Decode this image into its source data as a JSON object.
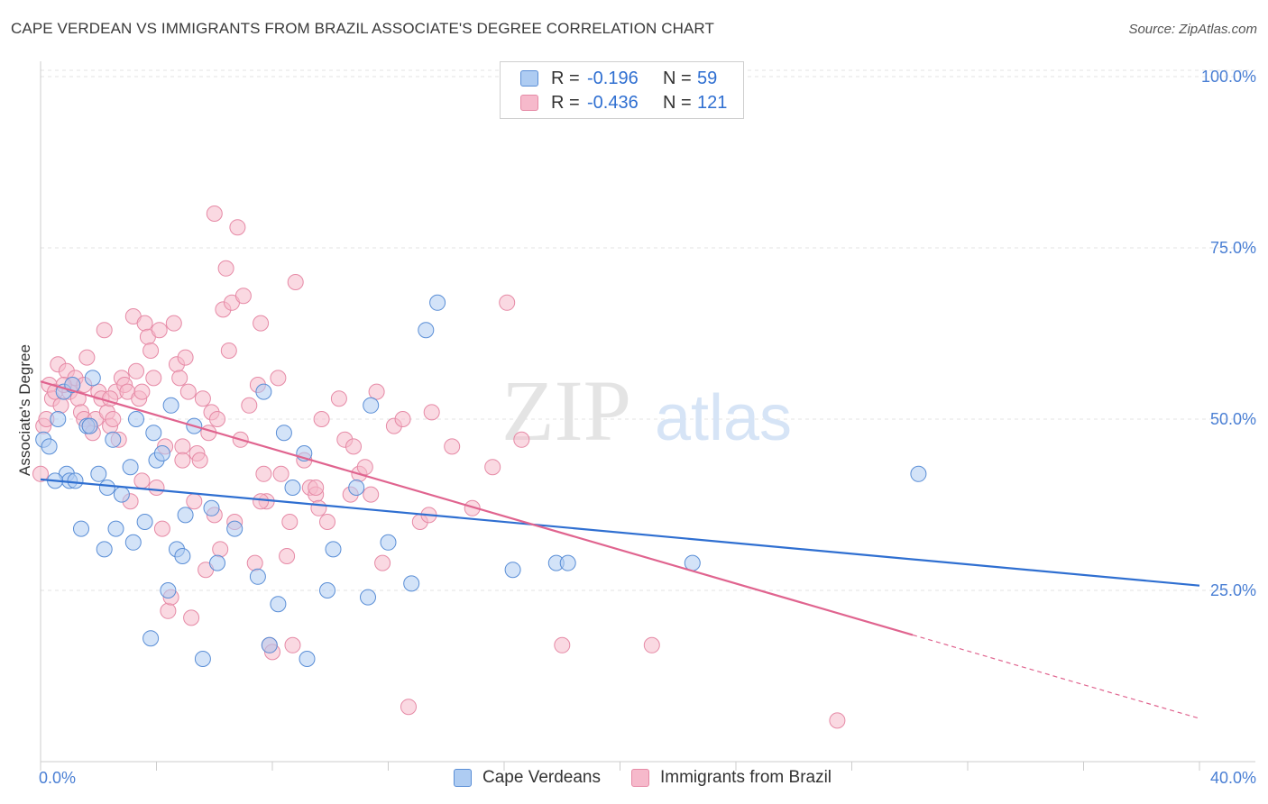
{
  "title": "CAPE VERDEAN VS IMMIGRANTS FROM BRAZIL ASSOCIATE'S DEGREE CORRELATION CHART",
  "source": "Source: ZipAtlas.com",
  "watermark": {
    "part1": "ZIP",
    "part2": "atlas"
  },
  "legend": {
    "series1": {
      "r_label": "R =",
      "r_value": "-0.196",
      "n_label": "N =",
      "n_value": "59"
    },
    "series2": {
      "r_label": "R =",
      "r_value": "-0.436",
      "n_label": "N =",
      "n_value": "121"
    }
  },
  "chart_data": {
    "type": "scatter",
    "title": "CAPE VERDEAN VS IMMIGRANTS FROM BRAZIL ASSOCIATE'S DEGREE CORRELATION CHART",
    "xlabel": "",
    "ylabel": "Associate's Degree",
    "xlim": [
      0,
      40
    ],
    "ylim": [
      0,
      105
    ],
    "x_tick_labels": {
      "min": "0.0%",
      "max": "40.0%"
    },
    "y_ticks": [
      {
        "value": 100,
        "label": "100.0%"
      },
      {
        "value": 75,
        "label": "75.0%"
      },
      {
        "value": 50,
        "label": "50.0%"
      },
      {
        "value": 25,
        "label": "25.0%"
      }
    ],
    "colors": {
      "blue_fill": "#aeccf2",
      "blue_stroke": "#5a8ed6",
      "blue_line": "#2f6fd1",
      "pink_fill": "#f6b9cb",
      "pink_stroke": "#e68aa6",
      "pink_line": "#e0648f",
      "tick_label": "#4a7fd4",
      "grid": "#e3e3e3"
    },
    "series": [
      {
        "name": "Cape Verdeans",
        "trend": {
          "x0": 0,
          "y0": 41.2,
          "x1": 40,
          "y1": 25.7
        },
        "points": [
          [
            0.1,
            47
          ],
          [
            0.3,
            46
          ],
          [
            0.6,
            50
          ],
          [
            0.8,
            54
          ],
          [
            0.9,
            42
          ],
          [
            1.0,
            41
          ],
          [
            1.2,
            41
          ],
          [
            1.4,
            34
          ],
          [
            1.6,
            49
          ],
          [
            1.8,
            56
          ],
          [
            2.0,
            42
          ],
          [
            2.2,
            31
          ],
          [
            2.3,
            40
          ],
          [
            2.5,
            47
          ],
          [
            2.6,
            34
          ],
          [
            2.8,
            39
          ],
          [
            3.1,
            43
          ],
          [
            3.2,
            32
          ],
          [
            3.3,
            50
          ],
          [
            3.6,
            35
          ],
          [
            3.8,
            18
          ],
          [
            4.0,
            44
          ],
          [
            4.2,
            45
          ],
          [
            4.4,
            25
          ],
          [
            4.5,
            52
          ],
          [
            4.7,
            31
          ],
          [
            4.9,
            30
          ],
          [
            5.0,
            36
          ],
          [
            5.3,
            49
          ],
          [
            5.6,
            15
          ],
          [
            5.9,
            37
          ],
          [
            6.1,
            29
          ],
          [
            6.7,
            34
          ],
          [
            7.5,
            27
          ],
          [
            7.7,
            54
          ],
          [
            7.9,
            17
          ],
          [
            8.2,
            23
          ],
          [
            8.4,
            48
          ],
          [
            8.7,
            40
          ],
          [
            9.1,
            45
          ],
          [
            9.2,
            15
          ],
          [
            9.9,
            25
          ],
          [
            10.1,
            31
          ],
          [
            10.9,
            40
          ],
          [
            11.3,
            24
          ],
          [
            11.4,
            52
          ],
          [
            12.0,
            32
          ],
          [
            12.8,
            26
          ],
          [
            13.3,
            63
          ],
          [
            13.7,
            67
          ],
          [
            16.3,
            28
          ],
          [
            17.8,
            29
          ],
          [
            18.2,
            29
          ],
          [
            22.5,
            29
          ],
          [
            30.3,
            42
          ],
          [
            0.5,
            41
          ],
          [
            1.1,
            55
          ],
          [
            1.7,
            49
          ],
          [
            3.9,
            48
          ]
        ]
      },
      {
        "name": "Immigrants from Brazil",
        "trend": {
          "x0": 0,
          "y0": 55.5,
          "x1": 30.1,
          "y1": 18.5
        },
        "trend_dashed": {
          "x0": 30.1,
          "y0": 18.5,
          "x1": 40,
          "y1": 6.3
        },
        "points": [
          [
            0.0,
            42
          ],
          [
            0.1,
            49
          ],
          [
            0.2,
            50
          ],
          [
            0.3,
            55
          ],
          [
            0.4,
            53
          ],
          [
            0.5,
            54
          ],
          [
            0.6,
            58
          ],
          [
            0.7,
            52
          ],
          [
            0.9,
            57
          ],
          [
            1.0,
            54
          ],
          [
            1.1,
            55
          ],
          [
            1.2,
            56
          ],
          [
            1.3,
            53
          ],
          [
            1.4,
            51
          ],
          [
            1.5,
            50
          ],
          [
            1.6,
            59
          ],
          [
            1.7,
            49
          ],
          [
            1.8,
            48
          ],
          [
            1.9,
            50
          ],
          [
            2.0,
            54
          ],
          [
            2.1,
            53
          ],
          [
            2.2,
            63
          ],
          [
            2.3,
            51
          ],
          [
            2.4,
            49
          ],
          [
            2.5,
            50
          ],
          [
            2.6,
            54
          ],
          [
            2.7,
            47
          ],
          [
            2.8,
            56
          ],
          [
            2.9,
            55
          ],
          [
            3.0,
            54
          ],
          [
            3.1,
            38
          ],
          [
            3.2,
            65
          ],
          [
            3.3,
            57
          ],
          [
            3.4,
            53
          ],
          [
            3.5,
            41
          ],
          [
            3.6,
            64
          ],
          [
            3.7,
            62
          ],
          [
            3.8,
            60
          ],
          [
            3.9,
            56
          ],
          [
            4.0,
            40
          ],
          [
            4.1,
            63
          ],
          [
            4.2,
            34
          ],
          [
            4.3,
            46
          ],
          [
            4.4,
            22
          ],
          [
            4.5,
            24
          ],
          [
            4.6,
            64
          ],
          [
            4.7,
            58
          ],
          [
            4.8,
            56
          ],
          [
            4.9,
            46
          ],
          [
            5.0,
            59
          ],
          [
            5.1,
            54
          ],
          [
            5.2,
            21
          ],
          [
            5.3,
            38
          ],
          [
            5.4,
            45
          ],
          [
            5.5,
            44
          ],
          [
            5.6,
            53
          ],
          [
            5.7,
            28
          ],
          [
            5.8,
            48
          ],
          [
            5.9,
            51
          ],
          [
            6.0,
            80
          ],
          [
            6.1,
            50
          ],
          [
            6.2,
            31
          ],
          [
            6.3,
            66
          ],
          [
            6.4,
            72
          ],
          [
            6.5,
            60
          ],
          [
            6.6,
            67
          ],
          [
            6.7,
            35
          ],
          [
            6.8,
            78
          ],
          [
            6.9,
            47
          ],
          [
            7.0,
            68
          ],
          [
            7.2,
            52
          ],
          [
            7.4,
            29
          ],
          [
            7.5,
            55
          ],
          [
            7.6,
            64
          ],
          [
            7.7,
            42
          ],
          [
            7.8,
            38
          ],
          [
            7.9,
            17
          ],
          [
            8.0,
            16
          ],
          [
            8.2,
            56
          ],
          [
            8.3,
            42
          ],
          [
            8.5,
            30
          ],
          [
            8.6,
            35
          ],
          [
            8.7,
            17
          ],
          [
            8.8,
            70
          ],
          [
            9.1,
            44
          ],
          [
            9.3,
            40
          ],
          [
            9.5,
            39
          ],
          [
            9.6,
            37
          ],
          [
            9.7,
            50
          ],
          [
            9.9,
            35
          ],
          [
            10.3,
            53
          ],
          [
            10.5,
            47
          ],
          [
            10.8,
            46
          ],
          [
            11.0,
            42
          ],
          [
            11.2,
            43
          ],
          [
            11.4,
            39
          ],
          [
            11.6,
            54
          ],
          [
            11.8,
            29
          ],
          [
            12.2,
            49
          ],
          [
            12.7,
            8
          ],
          [
            13.1,
            35
          ],
          [
            13.5,
            51
          ],
          [
            14.2,
            46
          ],
          [
            14.9,
            37
          ],
          [
            15.6,
            43
          ],
          [
            16.1,
            67
          ],
          [
            16.6,
            47
          ],
          [
            18.0,
            17
          ],
          [
            21.1,
            17
          ],
          [
            27.5,
            6
          ],
          [
            12.5,
            50
          ],
          [
            2.4,
            53
          ],
          [
            1.5,
            55
          ],
          [
            0.8,
            55
          ],
          [
            3.5,
            54
          ],
          [
            4.9,
            44
          ],
          [
            6.0,
            36
          ],
          [
            7.6,
            38
          ],
          [
            9.5,
            40
          ],
          [
            10.7,
            39
          ],
          [
            13.4,
            36
          ]
        ]
      }
    ]
  },
  "bottom_legend": {
    "series1": "Cape Verdeans",
    "series2": "Immigrants from Brazil"
  }
}
